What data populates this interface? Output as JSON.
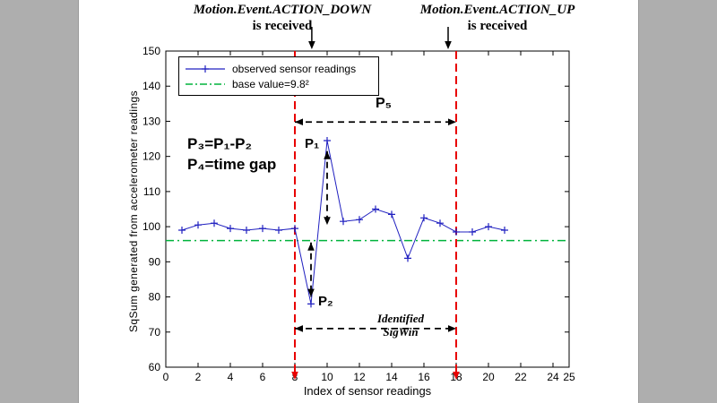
{
  "page": {
    "background": "#ffffff",
    "gutter_color": "#aeaeae"
  },
  "annotations": {
    "action_down_line1": "Motion.Event.ACTION_DOWN",
    "action_down_line2": "is received",
    "action_up_line1": "Motion.Event.ACTION_UP",
    "action_up_line2": "is received",
    "p3_formula": "P₃=P₁-P₂",
    "p4_formula": "P₄=time gap",
    "p1_label": "P₁",
    "p2_label": "P₂",
    "p5_label": "P₅",
    "sigwin_line1": "Identified",
    "sigwin_line2": "SigWin"
  },
  "chart_data": {
    "type": "line",
    "title": "",
    "xlabel": "Index of sensor readings",
    "ylabel": "SqSum generated from accelerometer readings",
    "xlim": [
      0,
      25
    ],
    "ylim": [
      60,
      150
    ],
    "xticks": [
      0,
      2,
      4,
      6,
      8,
      10,
      12,
      14,
      16,
      18,
      20,
      22,
      24,
      25
    ],
    "yticks": [
      60,
      70,
      80,
      90,
      100,
      110,
      120,
      130,
      140,
      150
    ],
    "grid": false,
    "legend_position": "top-left",
    "legend": [
      "observed sensor readings",
      "base value=9.8²"
    ],
    "series": [
      {
        "name": "observed sensor readings",
        "color": "#2020c0",
        "marker": "+",
        "x": [
          1,
          2,
          3,
          4,
          5,
          6,
          7,
          8,
          9,
          10,
          11,
          12,
          13,
          14,
          15,
          16,
          17,
          18,
          19,
          20,
          21
        ],
        "y": [
          99,
          100.5,
          101,
          99.5,
          99,
          99.5,
          99,
          99.5,
          78,
          124.5,
          101.5,
          102,
          105,
          103.5,
          91,
          102.5,
          101,
          98.5,
          98.5,
          100,
          99
        ]
      }
    ],
    "base_value": {
      "label": "base value=9.8²",
      "value": 96.04,
      "color": "#00b33c"
    },
    "markers": {
      "action_down_x": 8,
      "action_up_x": 18,
      "color": "#e80000"
    },
    "arrows": [
      {
        "id": "p5-span",
        "x1": 8,
        "y1": 129.8,
        "x2": 18,
        "y2": 129.8
      },
      {
        "id": "sigwin-span",
        "x1": 8,
        "y1": 71,
        "x2": 18,
        "y2": 71
      },
      {
        "id": "p1-height",
        "x1": 10,
        "y1": 121.5,
        "x2": 10,
        "y2": 100.5
      },
      {
        "id": "p2-depth",
        "x1": 9,
        "y1": 95.5,
        "x2": 9,
        "y2": 80
      }
    ],
    "top_arrows": [
      {
        "x": 9.05
      },
      {
        "x": 17.5
      }
    ]
  }
}
